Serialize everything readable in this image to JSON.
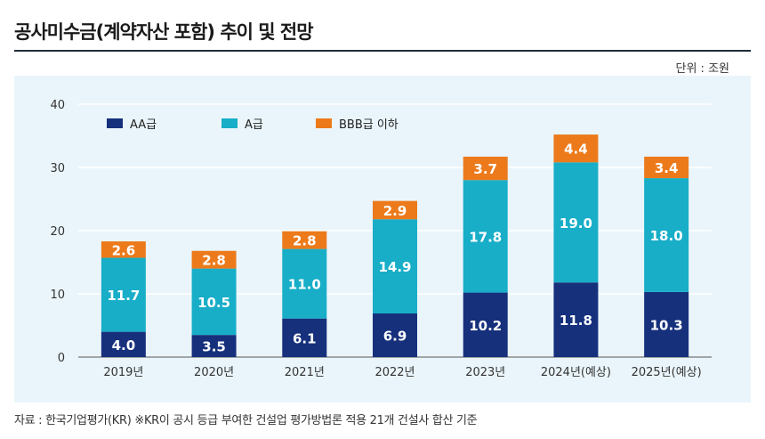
{
  "title": "공사미수금(계약자산 포함) 추이 및 전망",
  "unit": "단위 : 조원",
  "footnote": "자료 : 한국기업평가(KR) ※KR이 공시 등급 부여한 건설업 평가방법론 적용 21개 건설사 합산 기준",
  "colors": {
    "AA": "#16307c",
    "A": "#18aec8",
    "BBB": "#ec7a1b"
  },
  "chart_data": {
    "type": "bar",
    "stacked": true,
    "categories": [
      "2019년",
      "2020년",
      "2021년",
      "2022년",
      "2023년",
      "2024년(예상)",
      "2025년(예상)"
    ],
    "series": [
      {
        "name": "AA급",
        "values": [
          4.0,
          3.5,
          6.1,
          6.9,
          10.2,
          11.8,
          10.3
        ]
      },
      {
        "name": "A급",
        "values": [
          11.7,
          10.5,
          11.0,
          14.9,
          17.8,
          19.0,
          18.0
        ]
      },
      {
        "name": "BBB급 이하",
        "values": [
          2.6,
          2.8,
          2.8,
          2.9,
          3.7,
          4.4,
          3.4
        ]
      }
    ],
    "value_labels": [
      [
        "4.0",
        "3.5",
        "6.1",
        "6.9",
        "10.2",
        "11.8",
        "10.3"
      ],
      [
        "11.7",
        "10.5",
        "11.0",
        "14.9",
        "17.8",
        "19.0",
        "18.0"
      ],
      [
        "2.6",
        "2.8",
        "2.8",
        "2.9",
        "3.7",
        "4.4",
        "3.4"
      ]
    ],
    "ylim": [
      0,
      40
    ],
    "yticks": [
      0,
      10,
      20,
      30,
      40
    ],
    "ytick_labels": [
      "0",
      "10",
      "20",
      "30",
      "40"
    ],
    "grid": true,
    "legend": "top-left"
  }
}
